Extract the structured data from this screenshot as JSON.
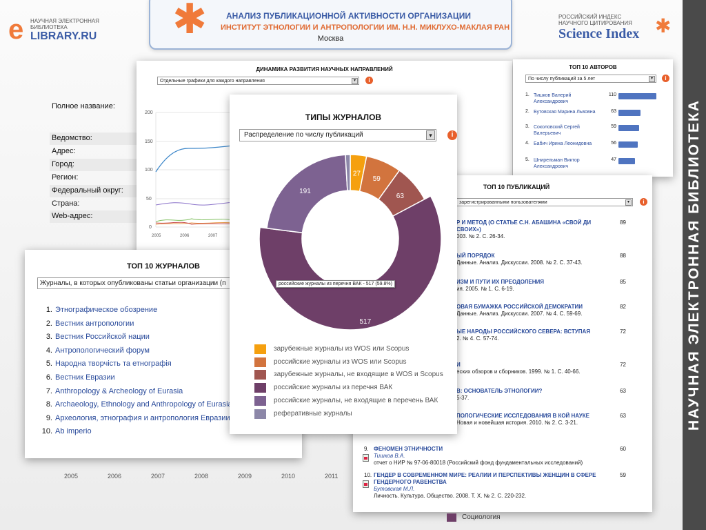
{
  "header": {
    "title1": "АНАЛИЗ ПУБЛИКАЦИОННОЙ АКТИВНОСТИ ОРГАНИЗАЦИИ",
    "title2": "ИНСТИТУТ ЭТНОЛОГИИ И АНТРОПОЛОГИИ ИМ. Н.Н. МИКЛУХО-МАКЛАЯ РАН",
    "city": "Москва"
  },
  "logo_left": {
    "small": "НАУЧНАЯ ЭЛЕКТРОННАЯ БИБЛИОТЕКА",
    "e": "e",
    "big": "LIBRARY.RU"
  },
  "logo_right": {
    "small": "РОССИЙСКИЙ ИНДЕКС НАУЧНОГО ЦИТИРОВАНИЯ",
    "big": "Science Index"
  },
  "side_text": "НАУЧНАЯ ЭЛЕКТРОННАЯ БИБЛИОТЕКА",
  "org_labels": [
    "Полное название:",
    "Ведомство:",
    "Адрес:",
    "Город:",
    "Регион:",
    "Федеральный округ:",
    "Страна:",
    "Web-адрес:"
  ],
  "dynamics": {
    "title": "ДИНАМИКА РАЗВИТИЯ НАУЧНЫХ НАПРАВЛЕНИЙ",
    "select": "Отдельные графики для каждого направления",
    "y_ticks": [
      "200",
      "150",
      "100",
      "50",
      "0"
    ],
    "x_ticks": [
      "2005",
      "2006",
      "2007"
    ]
  },
  "authors": {
    "title": "ТОП 10 АВТОРОВ",
    "select": "По числу публикаций за 5 лет",
    "items": [
      {
        "n": "1.",
        "name": "Тишков Валерий Александрович",
        "value": 110
      },
      {
        "n": "2.",
        "name": "Бутовская Марина Львовна",
        "value": 63
      },
      {
        "n": "3.",
        "name": "Соколовский Сергей Валерьевич",
        "value": 59
      },
      {
        "n": "4.",
        "name": "Бабич Ирина Леонидовна",
        "value": 56
      },
      {
        "n": "5.",
        "name": "Шнирельман Виктор Александрович",
        "value": 47
      }
    ]
  },
  "journals": {
    "title": "ТОП 10 ЖУРНАЛОВ",
    "select": "Журналы, в которых опубликованы статьи организации (п",
    "items": [
      {
        "n": "1.",
        "t": "Этнографическое обозрение"
      },
      {
        "n": "2.",
        "t": "Вестник антропологии"
      },
      {
        "n": "3.",
        "t": "Вестник Российской нации"
      },
      {
        "n": "4.",
        "t": "Антропологический форум"
      },
      {
        "n": "5.",
        "t": "Народна творчість та етнографія"
      },
      {
        "n": "6.",
        "t": "Вестник Евразии"
      },
      {
        "n": "7.",
        "t": "Anthropology & Archeology of Eurasia"
      },
      {
        "n": "8.",
        "t": "Archaeology, Ethnology and Anthropology of Eurasia"
      },
      {
        "n": "9.",
        "t": "Археология, этнография и антропология Евразии"
      },
      {
        "n": "10.",
        "t": "Ab imperio"
      }
    ]
  },
  "publications": {
    "title": "ТОП 10 ПУБЛИКАЦИЙ",
    "select": "зарегистрированными пользователями",
    "items": [
      {
        "n": "",
        "t": "Р И МЕТОД (О СТАТЬЕ С.Н. АБАШИНА «СВОЙ ДИ СВОИХ»)",
        "s": "003. № 2. С. 26-34.",
        "v": "89",
        "a": ""
      },
      {
        "n": "",
        "t": "ЫЙ ПОРЯДОК",
        "s": "Данные. Анализ. Дискуссии. 2008. № 2. С. 37-43.",
        "v": "88",
        "a": ""
      },
      {
        "n": "",
        "t": "ИЗМ И ПУТИ ИХ ПРЕОДОЛЕНИЯ",
        "s": "ия. 2005. № 1. С. 6-19.",
        "v": "85",
        "a": ""
      },
      {
        "n": "",
        "t": "ОВАЯ БУМАЖКА РОССИЙСКОЙ ДЕМОКРАТИИ",
        "s": "Данные. Анализ. Дискуссии. 2007. № 4. С. 59-69.",
        "v": "82",
        "a": ""
      },
      {
        "n": "",
        "t": "ЫЕ НАРОДЫ РОССИЙСКОГО СЕВЕРА: ВСТУПАЯ",
        "s": "2. № 4. С. 57-74.",
        "v": "72",
        "a": ""
      },
      {
        "n": "",
        "t": "И",
        "s": "еских обзоров и сборников. 1999. № 1. С. 40-66.",
        "v": "72",
        "a": ""
      },
      {
        "n": "",
        "t": "В: ОСНОВАТЕЛЬ ЭТНОЛОГИИ?",
        "s": "5-37.",
        "v": "63",
        "a": ""
      },
      {
        "n": "",
        "t": "ПОЛОГИЧЕСКИЕ ИССЛЕДОВАНИЯ В КОЙ НАУКЕ",
        "s": "Новая и новейшая история. 2010. № 2. С. 3-21.",
        "v": "63",
        "a": ""
      },
      {
        "n": "9.",
        "t": "ФЕНОМЕН ЭТНИЧНОСТИ",
        "s": "отчет о НИР № 97-06-80018 (Российский фонд фундаментальных исследований)",
        "v": "60",
        "a": "Тишков В.А."
      },
      {
        "n": "10.",
        "t": "ГЕНДЕР В СОВРЕМЕННОМ МИРЕ: РЕАЛИИ И ПЕРСПЕКТИВЫ ЖЕНЩИН В СФЕРЕ ГЕНДЕРНОГО РАВЕНСТВА",
        "s": "Личность. Культура. Общество. 2008. Т. Х. № 2. С. 220-232.",
        "v": "59",
        "a": "Бутовская М.Л."
      }
    ]
  },
  "types": {
    "title": "ТИПЫ ЖУРНАЛОВ",
    "select": "Распределение по числу публикаций",
    "tooltip": "российские журналы из перечня ВАК - 517 (59.8%)"
  },
  "chart_data": {
    "type": "pie",
    "title": "ТИПЫ ЖУРНАЛОВ",
    "labels": [
      "зарубежные журналы из WOS или Scopus",
      "российские журналы из WOS или Scopus",
      "зарубежные журналы, не входящие в WOS и Scopus",
      "российские журналы из перечня ВАК",
      "российские журналы, не входящие в перечень ВАК",
      "реферативные журналы"
    ],
    "values": [
      27,
      59,
      63,
      517,
      191,
      8
    ],
    "colors": [
      "#f5a00f",
      "#d2743e",
      "#a05650",
      "#6e3f68",
      "#7d6291",
      "#8c87a8"
    ],
    "highlight_index": 3
  },
  "bottom_legend": [
    {
      "t": "Социология",
      "c": "#6e3f68"
    }
  ],
  "bg_axis": [
    "2005",
    "2006",
    "2007",
    "2008",
    "2009",
    "2010",
    "2011"
  ]
}
